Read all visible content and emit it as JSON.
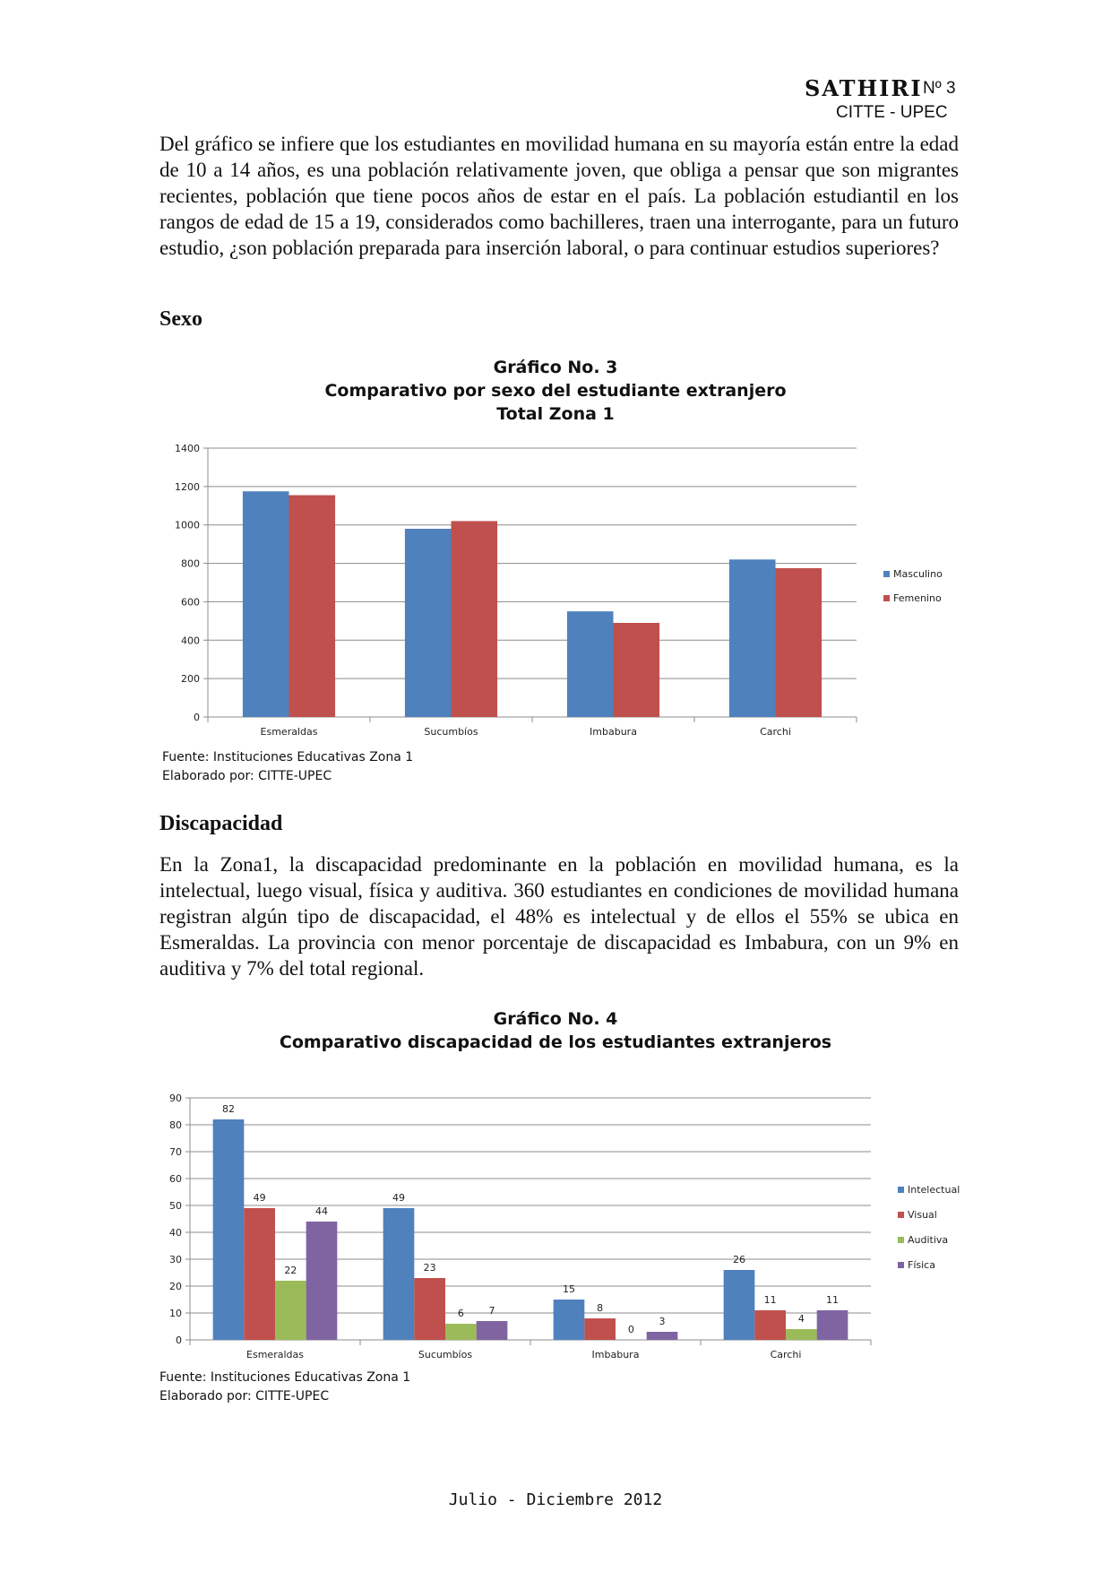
{
  "header": {
    "journal": "SATHIRI",
    "number": "Nº 3",
    "org": "CITTE - UPEC"
  },
  "paragraph_intro": "Del gráfico se infiere que los estudiantes en movilidad humana en su mayoría están entre la edad de 10 a 14 años, es una población relativamente joven, que obliga a pensar que son migrantes recientes, población que tiene pocos años de estar en el país. La población estudiantil en los rangos de edad de 15 a 19, considerados como bachilleres, traen una interrogante, para un futuro estudio, ¿son población preparada para inserción laboral, o para continuar estudios superiores?",
  "heading_sexo": "Sexo",
  "heading_discapacidad": "Discapacidad",
  "paragraph_discapacidad": "En la Zona1, la discapacidad predominante en la población en movilidad humana, es la intelectual, luego visual, física y auditiva. 360 estudiantes en condiciones de movilidad humana registran algún tipo de discapacidad, el 48% es intelectual y de ellos el 55% se ubica en Esmeraldas. La provincia con menor porcentaje de discapacidad es Imbabura, con un 9% en auditiva y 7% del total regional.",
  "chart1_meta": {
    "title_line1": "Gráfico No. 3",
    "title_line2": "Comparativo por sexo del estudiante extranjero",
    "title_line3": "Total Zona 1",
    "source": "Fuente: Instituciones Educativas Zona 1",
    "credit": "Elaborado por: CITTE-UPEC"
  },
  "chart2_meta": {
    "title_line1": "Gráfico No. 4",
    "title_line2": "Comparativo discapacidad de los estudiantes extranjeros",
    "source": "Fuente: Instituciones Educativas Zona 1",
    "credit": "Elaborado por: CITTE-UPEC"
  },
  "footer": "Julio - Diciembre 2012",
  "chart_data": [
    {
      "type": "bar",
      "title": "Gráfico No. 3 Comparativo por sexo del estudiante extranjero Total Zona 1",
      "categories": [
        "Esmeraldas",
        "Sucumbíos",
        "Imbabura",
        "Carchi"
      ],
      "series": [
        {
          "name": "Masculino",
          "values": [
            1175,
            980,
            550,
            820
          ],
          "color": "#4f81bd"
        },
        {
          "name": "Femenino",
          "values": [
            1155,
            1020,
            490,
            775
          ],
          "color": "#c0504d"
        }
      ],
      "ylim": [
        0,
        1400
      ],
      "yticks": [
        0,
        200,
        400,
        600,
        800,
        1000,
        1200,
        1400
      ],
      "grid": true,
      "legend": "right",
      "data_labels": false
    },
    {
      "type": "bar",
      "title": "Gráfico No. 4 Comparativo discapacidad de los estudiantes extranjeros",
      "categories": [
        "Esmeraldas",
        "Sucumbíos",
        "Imbabura",
        "Carchi"
      ],
      "series": [
        {
          "name": "Intelectual",
          "values": [
            82,
            49,
            15,
            26
          ],
          "color": "#4f81bd"
        },
        {
          "name": "Visual",
          "values": [
            49,
            23,
            8,
            11
          ],
          "color": "#c0504d"
        },
        {
          "name": "Auditiva",
          "values": [
            22,
            6,
            0,
            4
          ],
          "color": "#9bbb59"
        },
        {
          "name": "Física",
          "values": [
            44,
            7,
            3,
            11
          ],
          "color": "#8064a2"
        }
      ],
      "ylim": [
        0,
        90
      ],
      "yticks": [
        0,
        10,
        20,
        30,
        40,
        50,
        60,
        70,
        80,
        90
      ],
      "grid": true,
      "legend": "right",
      "data_labels": true
    }
  ]
}
